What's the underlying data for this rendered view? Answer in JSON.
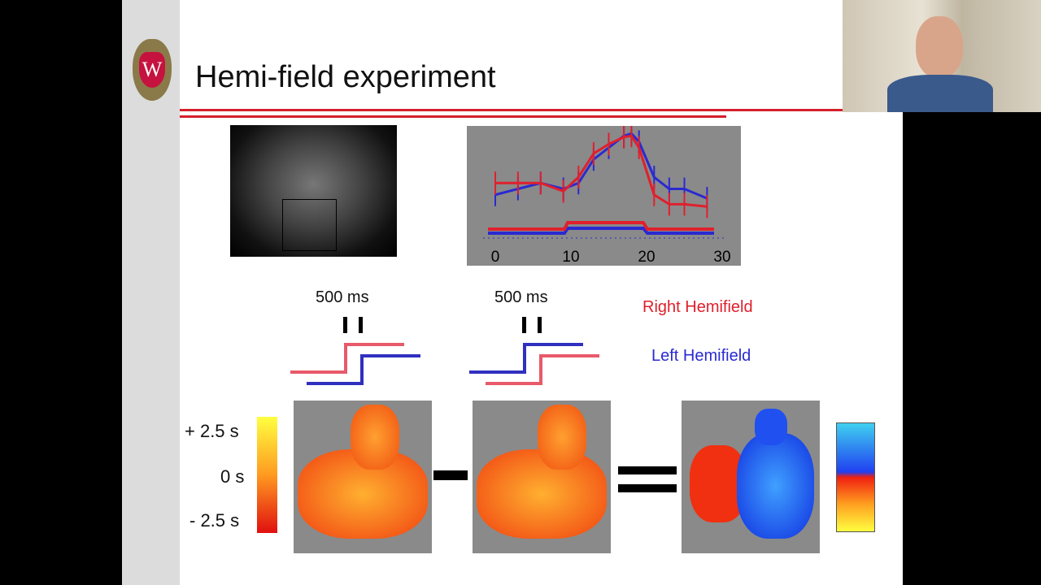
{
  "slide": {
    "title": "Hemi-field experiment",
    "logo_text": "W",
    "stim_labels": [
      "500 ms",
      "500 ms"
    ],
    "legend": {
      "right": "Right Hemifield",
      "left": "Left Hemifield",
      "right_color": "#e0202c",
      "left_color": "#2a2ad0"
    },
    "colorbar_labels": [
      "+ 2.5 s",
      "0 s",
      "- 2.5 s"
    ]
  },
  "chart_data": {
    "type": "line",
    "x_ticks": [
      "0",
      "10",
      "20",
      "30"
    ],
    "xlim": [
      -1,
      30
    ],
    "grid": false,
    "series": [
      {
        "color": "#2a2ad0",
        "x": [
          0,
          3,
          6,
          9,
          11,
          13,
          15,
          17,
          18,
          19,
          21,
          23,
          25,
          28
        ],
        "y": [
          0.45,
          0.5,
          0.55,
          0.5,
          0.55,
          0.75,
          0.85,
          0.95,
          0.97,
          0.9,
          0.6,
          0.5,
          0.5,
          0.42
        ]
      },
      {
        "color": "#e0202c",
        "x": [
          0,
          3,
          6,
          9,
          11,
          13,
          15,
          17,
          18,
          19,
          21,
          23,
          25,
          28
        ],
        "y": [
          0.55,
          0.55,
          0.55,
          0.48,
          0.6,
          0.8,
          0.88,
          0.94,
          0.95,
          0.85,
          0.45,
          0.37,
          0.37,
          0.35
        ]
      }
    ]
  },
  "presenter": {
    "label": "presenter-video"
  }
}
